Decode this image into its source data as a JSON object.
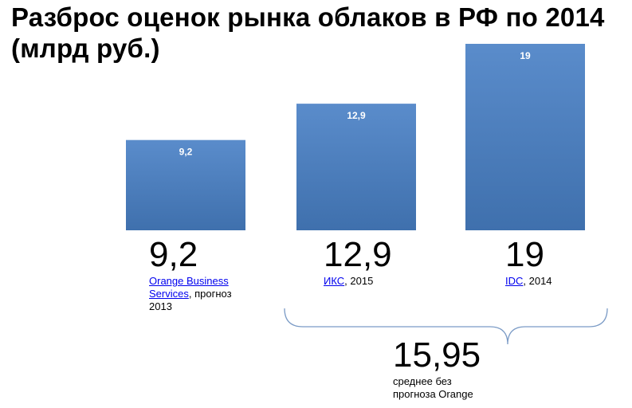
{
  "title": "Разброс оценок рынка облаков в РФ по 2014 (млрд руб.)",
  "chart_data": {
    "type": "bar",
    "categories": [
      "Orange Business Services",
      "ИКС",
      "IDC"
    ],
    "values": [
      9.2,
      12.9,
      19
    ],
    "data_labels": [
      "9,2",
      "12,9",
      "19"
    ],
    "bar_color": "#4a7ebb",
    "ylim": [
      0,
      19
    ]
  },
  "values_big": [
    "9,2",
    "12,9",
    "19"
  ],
  "sources": [
    {
      "link": "Orange Business Services",
      "rest": ", прогноз 2013"
    },
    {
      "link": "ИКС",
      "rest": ", 2015"
    },
    {
      "link": "IDC",
      "rest": ", 2014"
    }
  ],
  "average": {
    "value": "15,95",
    "note": "среднее без прогноза Orange"
  }
}
